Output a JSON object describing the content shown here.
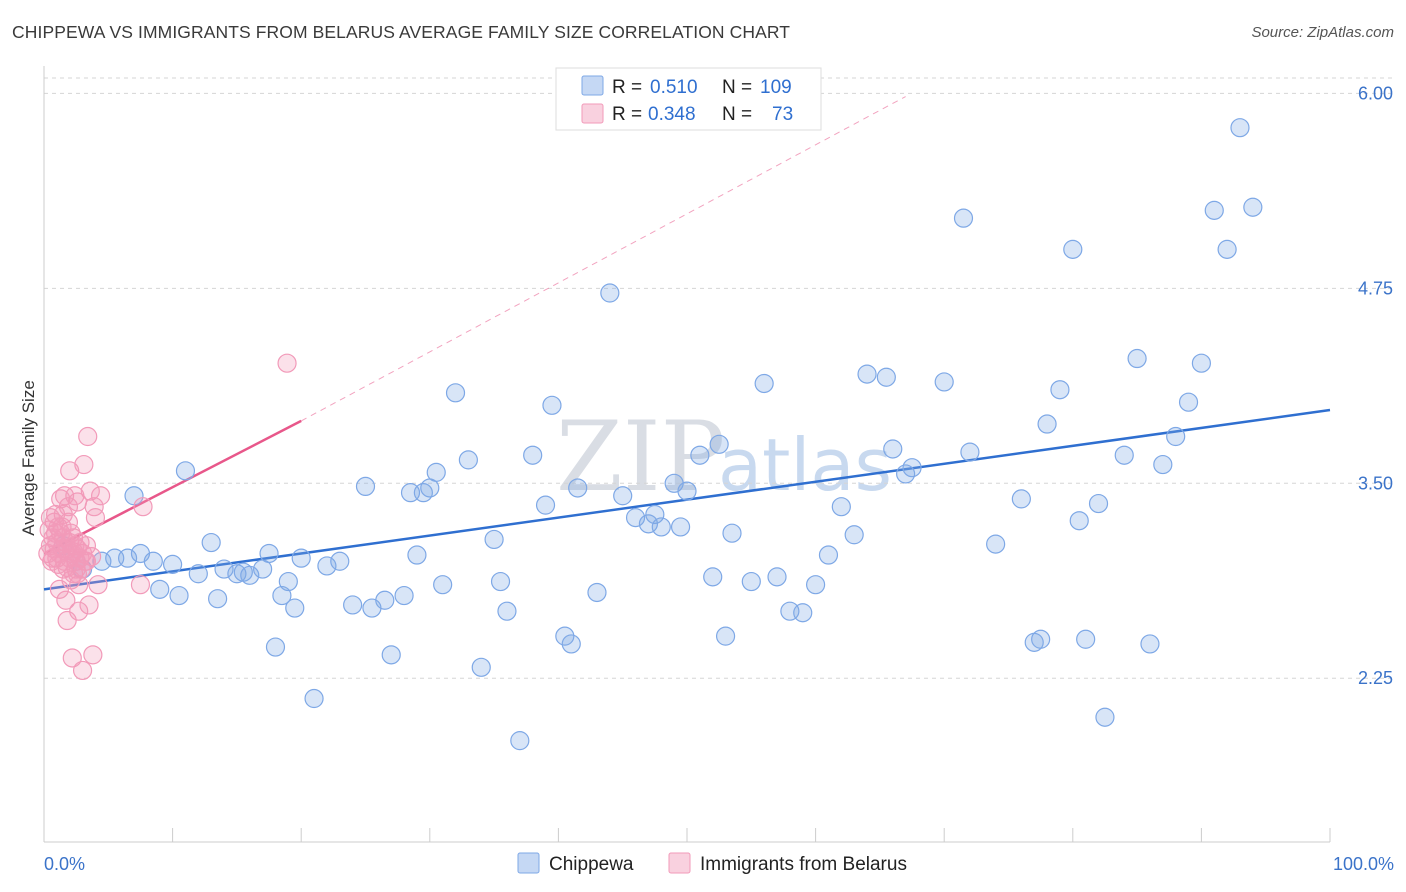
{
  "title": "CHIPPEWA VS IMMIGRANTS FROM BELARUS AVERAGE FAMILY SIZE CORRELATION CHART",
  "source": "Source: ZipAtlas.com",
  "chart_data": {
    "type": "scatter",
    "ylabel": "Average Family Size",
    "x_tick_labels": [
      "0.0%",
      "100.0%"
    ],
    "y_ticks": [
      2.25,
      3.5,
      4.75,
      6.0
    ],
    "y_tick_labels": [
      "2.25",
      "3.50",
      "4.75",
      "6.00"
    ],
    "xlim": [
      0,
      100
    ],
    "ylim": [
      1.2,
      6.15
    ],
    "grid": "horizontal dashed",
    "watermark_a": "ZIP",
    "watermark_b": "atlas",
    "legend": {
      "position": "top-center",
      "rows": [
        {
          "r_label": "R =",
          "r_value": "0.510",
          "n_label": "N =",
          "n_value": "109"
        },
        {
          "r_label": "R =",
          "r_value": "0.348",
          "n_label": "N =",
          "n_value": "73"
        }
      ]
    },
    "series": [
      {
        "name": "Chippewa",
        "color": "#7ea8e6",
        "line_color": "#2f6fd0",
        "trend": {
          "x": [
            0,
            100
          ],
          "y": [
            2.82,
            3.97
          ]
        },
        "points": [
          [
            1.5,
            3.1
          ],
          [
            2.5,
            3.0
          ],
          [
            3,
            2.95
          ],
          [
            4.5,
            3.0
          ],
          [
            5.5,
            3.02
          ],
          [
            6.5,
            3.02
          ],
          [
            7,
            3.42
          ],
          [
            7.5,
            3.05
          ],
          [
            8.5,
            3.0
          ],
          [
            9,
            2.82
          ],
          [
            10,
            2.98
          ],
          [
            10.5,
            2.78
          ],
          [
            11,
            3.58
          ],
          [
            12,
            2.92
          ],
          [
            13,
            3.12
          ],
          [
            13.5,
            2.76
          ],
          [
            14,
            2.95
          ],
          [
            15,
            2.92
          ],
          [
            15.5,
            2.93
          ],
          [
            16,
            2.91
          ],
          [
            17,
            2.95
          ],
          [
            17.5,
            3.05
          ],
          [
            18,
            2.45
          ],
          [
            18.5,
            2.78
          ],
          [
            19,
            2.87
          ],
          [
            19.5,
            2.7
          ],
          [
            20,
            3.02
          ],
          [
            21,
            2.12
          ],
          [
            22,
            2.97
          ],
          [
            23,
            3.0
          ],
          [
            24,
            2.72
          ],
          [
            25,
            3.48
          ],
          [
            25.5,
            2.7
          ],
          [
            26.5,
            2.75
          ],
          [
            27,
            2.4
          ],
          [
            28,
            2.78
          ],
          [
            28.5,
            3.44
          ],
          [
            29,
            3.04
          ],
          [
            29.5,
            3.44
          ],
          [
            30,
            3.47
          ],
          [
            30.5,
            3.57
          ],
          [
            31,
            2.85
          ],
          [
            32,
            4.08
          ],
          [
            33,
            3.65
          ],
          [
            34,
            2.32
          ],
          [
            35,
            3.14
          ],
          [
            35.5,
            2.87
          ],
          [
            36,
            2.68
          ],
          [
            37,
            1.85
          ],
          [
            38,
            3.68
          ],
          [
            39,
            3.36
          ],
          [
            39.5,
            4.0
          ],
          [
            40.5,
            2.52
          ],
          [
            41,
            2.47
          ],
          [
            41.5,
            3.47
          ],
          [
            43,
            2.8
          ],
          [
            44,
            4.72
          ],
          [
            45,
            3.42
          ],
          [
            46,
            3.28
          ],
          [
            47,
            3.24
          ],
          [
            47.5,
            3.3
          ],
          [
            48,
            3.22
          ],
          [
            49,
            3.5
          ],
          [
            49.5,
            3.22
          ],
          [
            50,
            3.45
          ],
          [
            51,
            3.68
          ],
          [
            52,
            2.9
          ],
          [
            52.5,
            3.75
          ],
          [
            53,
            2.52
          ],
          [
            53.5,
            3.18
          ],
          [
            55,
            2.87
          ],
          [
            56,
            4.14
          ],
          [
            57,
            2.9
          ],
          [
            58,
            2.68
          ],
          [
            59,
            2.67
          ],
          [
            60,
            2.85
          ],
          [
            61,
            3.04
          ],
          [
            62,
            3.35
          ],
          [
            63,
            3.17
          ],
          [
            64,
            4.2
          ],
          [
            65.5,
            4.18
          ],
          [
            66,
            3.72
          ],
          [
            67,
            3.56
          ],
          [
            67.5,
            3.6
          ],
          [
            70,
            4.15
          ],
          [
            71.5,
            5.2
          ],
          [
            72,
            3.7
          ],
          [
            74,
            3.11
          ],
          [
            76,
            3.4
          ],
          [
            77,
            2.48
          ],
          [
            77.5,
            2.5
          ],
          [
            78,
            3.88
          ],
          [
            79,
            4.1
          ],
          [
            80,
            5.0
          ],
          [
            80.5,
            3.26
          ],
          [
            81,
            2.5
          ],
          [
            82,
            3.37
          ],
          [
            82.5,
            2.0
          ],
          [
            84,
            3.68
          ],
          [
            85,
            4.3
          ],
          [
            86,
            2.47
          ],
          [
            87,
            3.62
          ],
          [
            88,
            3.8
          ],
          [
            89,
            4.02
          ],
          [
            90,
            4.27
          ],
          [
            91,
            5.25
          ],
          [
            92,
            5.0
          ],
          [
            93,
            5.78
          ],
          [
            94,
            5.27
          ]
        ]
      },
      {
        "name": "Immigrants from Belarus",
        "color": "#f29ab9",
        "line_color": "#e8578a",
        "trend": {
          "x": [
            0,
            20
          ],
          "y": [
            3.05,
            3.9
          ]
        },
        "trend_ext": {
          "x": [
            20,
            67
          ],
          "y": [
            3.9,
            5.98
          ]
        },
        "points": [
          [
            0.3,
            3.05
          ],
          [
            0.4,
            3.2
          ],
          [
            0.5,
            3.1
          ],
          [
            0.5,
            3.28
          ],
          [
            0.6,
            3.0
          ],
          [
            0.7,
            3.15
          ],
          [
            0.8,
            3.08
          ],
          [
            0.8,
            3.25
          ],
          [
            0.9,
            3.3
          ],
          [
            1.0,
            3.02
          ],
          [
            1.0,
            3.12
          ],
          [
            1.1,
            3.22
          ],
          [
            1.2,
            3.05
          ],
          [
            1.2,
            2.82
          ],
          [
            1.3,
            3.18
          ],
          [
            1.3,
            3.4
          ],
          [
            1.4,
            3.08
          ],
          [
            1.5,
            2.95
          ],
          [
            1.5,
            3.3
          ],
          [
            1.6,
            3.0
          ],
          [
            1.6,
            3.42
          ],
          [
            1.7,
            3.12
          ],
          [
            1.7,
            2.75
          ],
          [
            1.8,
            3.08
          ],
          [
            1.8,
            2.62
          ],
          [
            1.9,
            3.25
          ],
          [
            1.9,
            3.35
          ],
          [
            2.0,
            3.02
          ],
          [
            2.0,
            3.58
          ],
          [
            2.1,
            3.18
          ],
          [
            2.1,
            2.88
          ],
          [
            2.2,
            3.05
          ],
          [
            2.2,
            2.38
          ],
          [
            2.3,
            2.92
          ],
          [
            2.3,
            3.15
          ],
          [
            2.4,
            3.1
          ],
          [
            2.4,
            3.42
          ],
          [
            2.5,
            2.95
          ],
          [
            2.5,
            3.0
          ],
          [
            2.6,
            3.08
          ],
          [
            2.6,
            3.38
          ],
          [
            2.7,
            2.85
          ],
          [
            2.7,
            2.68
          ],
          [
            2.8,
            3.02
          ],
          [
            2.8,
            3.12
          ],
          [
            2.9,
            2.95
          ],
          [
            3.0,
            3.05
          ],
          [
            3.0,
            2.3
          ],
          [
            3.1,
            3.62
          ],
          [
            3.2,
            3.0
          ],
          [
            3.3,
            3.1
          ],
          [
            3.4,
            3.8
          ],
          [
            3.5,
            2.72
          ],
          [
            3.6,
            3.45
          ],
          [
            3.7,
            3.03
          ],
          [
            3.8,
            2.4
          ],
          [
            3.9,
            3.35
          ],
          [
            4.0,
            3.28
          ],
          [
            4.2,
            2.85
          ],
          [
            4.4,
            3.42
          ],
          [
            1.1,
            2.98
          ],
          [
            1.4,
            3.22
          ],
          [
            0.9,
            3.18
          ],
          [
            2.3,
            3.06
          ],
          [
            1.8,
            2.96
          ],
          [
            2.6,
            2.92
          ],
          [
            0.7,
            3.02
          ],
          [
            1.5,
            3.15
          ],
          [
            3.3,
            3.0
          ],
          [
            2.0,
            3.12
          ],
          [
            7.5,
            2.85
          ],
          [
            7.7,
            3.35
          ],
          [
            18.9,
            4.27
          ]
        ]
      }
    ]
  }
}
